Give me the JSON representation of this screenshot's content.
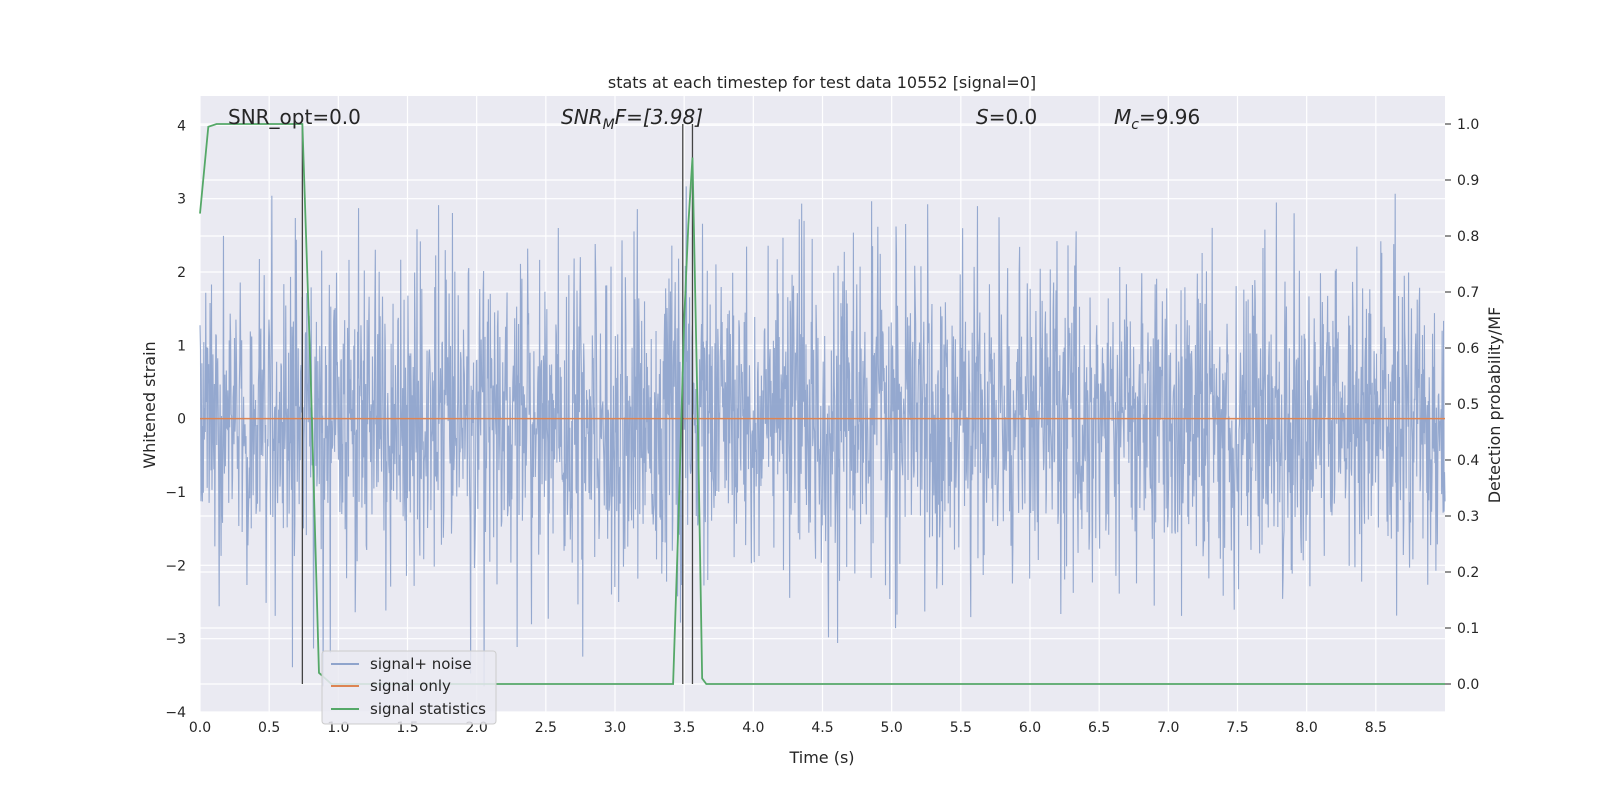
{
  "chart_data": {
    "type": "line",
    "title": "stats at each timestep for test data 10552 [signal=0]",
    "xlabel": "Time (s)",
    "ylabel": "Whitened strain",
    "y2label": "Detection probability/MF",
    "xlim": [
      0.0,
      9.0
    ],
    "ylim": [
      -4.0,
      4.4
    ],
    "y2lim": [
      -0.05,
      1.05
    ],
    "xticks": [
      "0.0",
      "0.5",
      "1.0",
      "1.5",
      "2.0",
      "2.5",
      "3.0",
      "3.5",
      "4.0",
      "4.5",
      "5.0",
      "5.5",
      "6.0",
      "6.5",
      "7.0",
      "7.5",
      "8.0",
      "8.5"
    ],
    "yticks": [
      "4",
      "3",
      "2",
      "1",
      "0",
      "−1",
      "−2",
      "−3",
      "−4"
    ],
    "y2ticks": [
      "1.0",
      "0.9",
      "0.8",
      "0.7",
      "0.6",
      "0.5",
      "0.4",
      "0.3",
      "0.2",
      "0.1",
      "0.0"
    ],
    "grid": true,
    "legend_position": "lower-left",
    "annotations": {
      "snr_opt": "SNR_opt=0.0",
      "snr_mf_main": "SNR",
      "snr_mf_sub": "M",
      "snr_mf_tail": "F=[3.98]",
      "s_var": "S",
      "s_val": "=0.0",
      "mc_var": "M",
      "mc_sub": "c",
      "mc_val": "=9.96"
    },
    "series": [
      {
        "name": "signal+ noise",
        "color": "#8fa4cc",
        "axis": "left",
        "description_values": {
          "duration_s": 9.0,
          "approx_range": [
            -3.65,
            3.9
          ]
        }
      },
      {
        "name": "signal only",
        "color": "#dd8452",
        "axis": "left",
        "x": [
          0.0,
          9.0
        ],
        "y": [
          0.0,
          0.0
        ]
      },
      {
        "name": "signal statistics",
        "color": "#55a868",
        "axis": "right",
        "x": [
          0.0,
          0.06,
          0.12,
          0.2,
          0.3,
          0.4,
          0.5,
          0.6,
          0.7,
          0.74,
          0.8,
          0.86,
          0.95,
          1.5,
          2.0,
          2.5,
          3.0,
          3.42,
          3.46,
          3.5,
          3.53,
          3.56,
          3.6,
          3.63,
          3.66,
          3.7,
          4.0,
          5.0,
          6.0,
          7.0,
          8.0,
          9.0
        ],
        "y": [
          0.84,
          0.995,
          1.0,
          1.0,
          1.0,
          1.0,
          1.0,
          1.0,
          1.0,
          1.0,
          0.55,
          0.02,
          0.0,
          0.0,
          0.0,
          0.0,
          0.0,
          0.0,
          0.3,
          0.65,
          0.82,
          0.94,
          0.45,
          0.01,
          0.0,
          0.0,
          0.0,
          0.0,
          0.0,
          0.0,
          0.0,
          0.0
        ]
      }
    ],
    "vertical_markers": [
      0.74,
      3.49,
      3.56
    ]
  }
}
